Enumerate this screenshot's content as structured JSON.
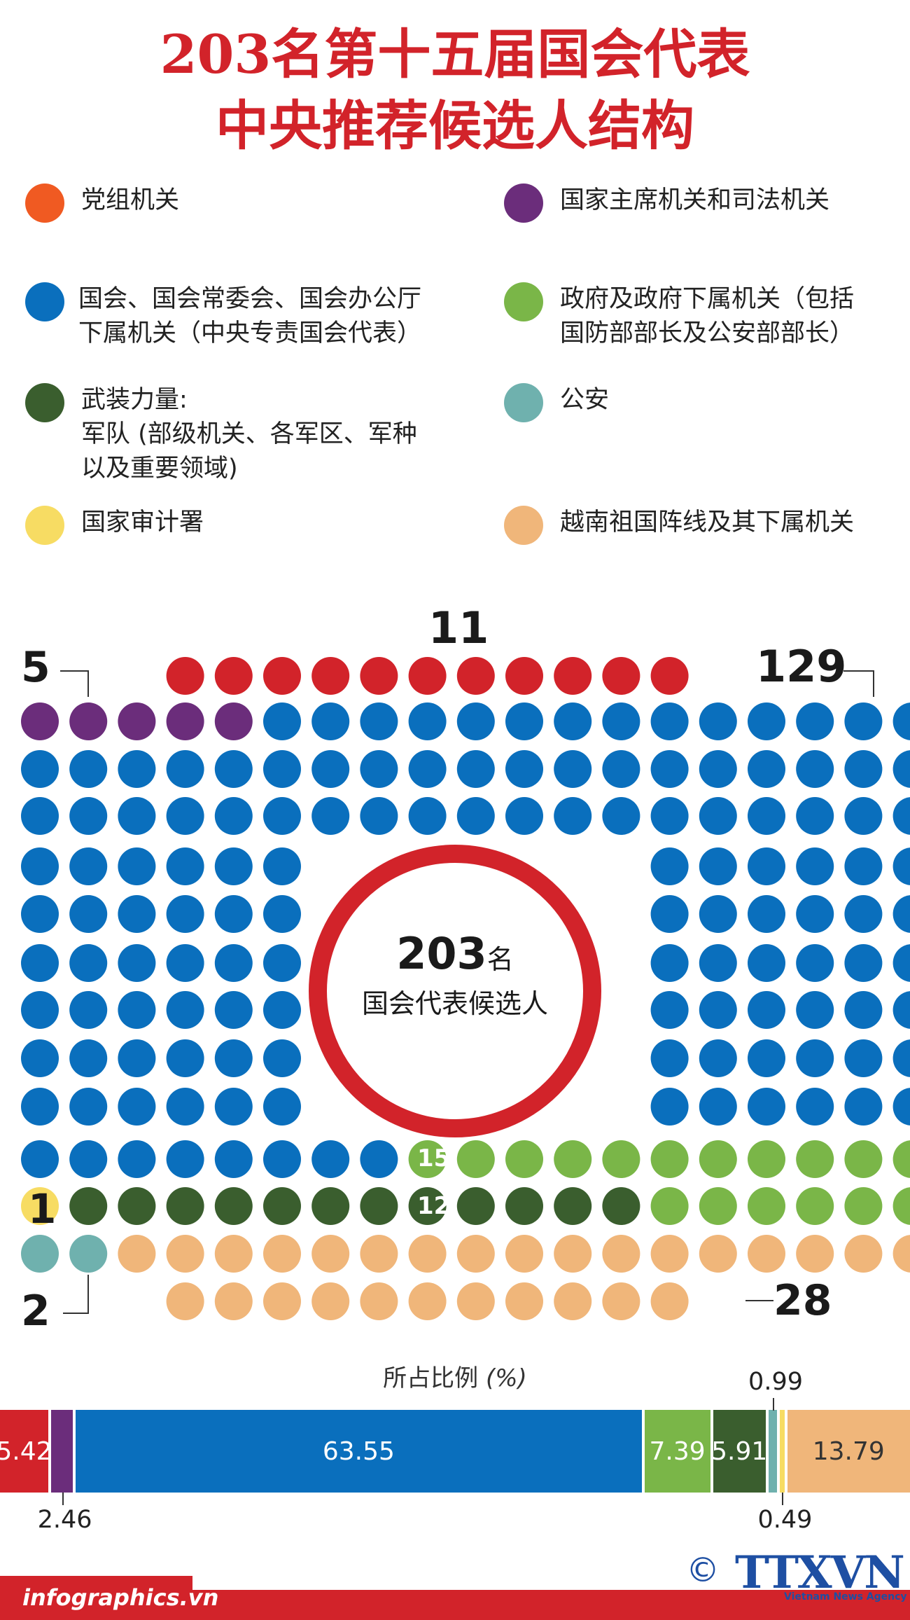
{
  "title_line1": "203名第十五届国会代表",
  "title_line2": "中央推荐候选人结构",
  "legend": [
    {
      "label": "党组机关",
      "color": "#f05a22"
    },
    {
      "label": "国家主席机关和司法机关",
      "color": "#6b2d7b"
    },
    {
      "label": "国会、国会常委会、国会办公厅\n下属机关（中央专责国会代表）",
      "color": "#0a6fbd"
    },
    {
      "label": "政府及政府下属机关（包括\n国防部部长及公安部部长）",
      "color": "#7ab648"
    },
    {
      "label": "武装力量:\n军队 (部级机关、各军区、军种\n以及重要领域)",
      "color": "#3a5e2e"
    },
    {
      "label": "公安",
      "color": "#6fb1ae"
    },
    {
      "label": "国家审计署",
      "color": "#f7dc63"
    },
    {
      "label": "越南祖国阵线及其下属机关",
      "color": "#f0b67a"
    }
  ],
  "callouts": {
    "n5": "5",
    "n11": "11",
    "n129": "129",
    "n1": "1",
    "n2": "2",
    "n28": "28",
    "n15": "15",
    "n12": "12"
  },
  "center": {
    "number": "203",
    "unit": "名",
    "caption": "国会代表候选人"
  },
  "ratio_title": "所占比例",
  "ratio_unit": "(%)",
  "chart_data": {
    "type": "bar",
    "total": 203,
    "categories": [
      "党组机关",
      "国家主席机关和司法机关",
      "国会、国会常委会、国会办公厅下属机关（中央专责国会代表）",
      "政府及政府下属机关",
      "武装力量",
      "公安",
      "国家审计署",
      "越南祖国阵线及其下属机关"
    ],
    "counts": [
      11,
      5,
      129,
      15,
      12,
      2,
      1,
      28
    ],
    "percent": [
      5.42,
      2.46,
      63.55,
      7.39,
      5.91,
      0.99,
      0.49,
      13.79
    ],
    "percent_labels": [
      "5.42",
      "2.46",
      "63.55",
      "7.39",
      "5.91",
      "0.99",
      "0.49",
      "13.79"
    ],
    "colors": [
      "#d2232a",
      "#6b2d7b",
      "#0a6fbd",
      "#7ab648",
      "#3a5e2e",
      "#6fb1ae",
      "#f7dc63",
      "#f0b67a"
    ]
  },
  "footer": {
    "site": "infographics.vn",
    "copyright": "©",
    "agency": "TTXVN",
    "agency_sub": "Vietnam News Agency"
  }
}
